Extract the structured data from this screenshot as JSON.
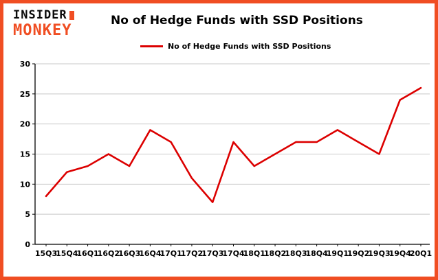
{
  "logo": {
    "line1": "INSIDER",
    "line2": "MONKEY"
  },
  "title": "No of Hedge Funds with SSD Positions",
  "legend": {
    "label": "No of Hedge Funds with SSD Positions"
  },
  "colors": {
    "accent": "#f04e23",
    "line": "#dc0000",
    "grid": "#c8c8c8",
    "axis": "#000000"
  },
  "chart_data": {
    "type": "line",
    "title": "No of Hedge Funds with SSD Positions",
    "categories": [
      "15Q3",
      "15Q4",
      "16Q1",
      "16Q2",
      "16Q3",
      "16Q4",
      "17Q1",
      "17Q2",
      "17Q3",
      "17Q4",
      "18Q1",
      "18Q2",
      "18Q3",
      "18Q4",
      "19Q1",
      "19Q2",
      "19Q3",
      "19Q4",
      "20Q1"
    ],
    "values": [
      8,
      12,
      13,
      15,
      13,
      19,
      17,
      11,
      7,
      17,
      13,
      15,
      17,
      17,
      19,
      17,
      15,
      24,
      26
    ],
    "xlabel": "",
    "ylabel": "",
    "ylim": [
      0,
      30
    ],
    "yticks": [
      0,
      5,
      10,
      15,
      20,
      25,
      30
    ],
    "line_color": "#dc0000",
    "grid": true,
    "legend_position": "top"
  }
}
